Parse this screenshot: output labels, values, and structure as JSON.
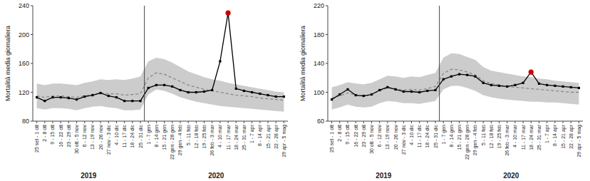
{
  "chart_data": [
    {
      "type": "line",
      "ylabel": "Mortalità media giornaliera",
      "categories": [
        "25 set - 1 ott",
        "2 - 8 ott",
        "9 - 15 ott",
        "16 - 22 ott",
        "23 - 29 ott",
        "30 ott - 5 nov",
        "6 - 12 nov",
        "13 - 19 nov",
        "20 - 26 nov",
        "27 nov - 3 dic",
        "4 - 10 dic",
        "11 - 17 dic",
        "18 - 24 dic",
        "25 - 31 dic",
        "1 - 7 gen",
        "8 - 14 gen",
        "15 - 21 gen",
        "22 gen - 28 gen",
        "29 gen - 4 feb",
        "5 - 11 feb",
        "12 - 18 feb",
        "19 - 25 feb",
        "26 feb - 3 mar",
        "4 - 10 mar",
        "11 - 17 mar",
        "18 - 24 mar",
        "25 - 31 mar",
        "1 - 7 apr",
        "8 - 14 apr",
        "15 - 21 apr",
        "22 - 28 apr",
        "29 apr - 5 mag"
      ],
      "ylim": [
        80,
        240
      ],
      "yticks": [
        80,
        120,
        160,
        200,
        240
      ],
      "grid": false,
      "groups": [
        {
          "label": "2019",
          "count": 14
        },
        {
          "label": "2020",
          "count": 18
        }
      ],
      "series": [
        {
          "type": "area",
          "color": "#cccccc",
          "lower": [
            98,
            96,
            98,
            98,
            97,
            95,
            98,
            100,
            101,
            99,
            98,
            95,
            95,
            96,
            117,
            124,
            122,
            118,
            113,
            110,
            107,
            105,
            103,
            101,
            100,
            99,
            98,
            97,
            96,
            95,
            94,
            93
          ],
          "upper": [
            132,
            130,
            132,
            132,
            131,
            130,
            133,
            135,
            138,
            137,
            138,
            137,
            139,
            142,
            163,
            168,
            166,
            161,
            155,
            149,
            145,
            141,
            138,
            136,
            133,
            131,
            129,
            127,
            125,
            123,
            121,
            120
          ]
        },
        {
          "type": "line",
          "color": "#888888",
          "line_style": "dashed",
          "values": [
            115,
            113,
            115,
            115,
            114,
            113,
            115,
            117,
            119,
            118,
            118,
            116,
            117,
            118,
            140,
            147,
            145,
            140,
            135,
            130,
            127,
            124,
            122,
            120,
            118,
            116,
            115,
            114,
            112,
            111,
            110,
            109
          ]
        },
        {
          "type": "line",
          "color": "#000000",
          "line_style": "solid",
          "marker": "square",
          "values": [
            113,
            108,
            113,
            113,
            112,
            110,
            114,
            116,
            119,
            115,
            113,
            108,
            108,
            108,
            126,
            130,
            130,
            128,
            123,
            120,
            120,
            121,
            123,
            163,
            230,
            125,
            122,
            120,
            118,
            116,
            114,
            114
          ]
        },
        {
          "type": "scatter",
          "color": "#cc0000",
          "marker": "circle",
          "values": [
            null,
            null,
            null,
            null,
            null,
            null,
            null,
            null,
            null,
            null,
            null,
            null,
            null,
            null,
            null,
            null,
            null,
            null,
            null,
            null,
            null,
            null,
            null,
            null,
            230,
            null,
            null,
            null,
            null,
            null,
            null,
            null
          ]
        }
      ]
    },
    {
      "type": "line",
      "ylabel": "Mortalità media giornaliera",
      "categories": [
        "25 set - 1 ott",
        "2 - 8 ott",
        "9 - 15 ott",
        "16 - 22 ott",
        "23 - 29 ott",
        "30 ott - 5 nov",
        "6 - 12 nov",
        "13 - 19 nov",
        "20 - 26 nov",
        "27 nov - 3 dic",
        "4 - 10 dic",
        "11 - 17 dic",
        "18 - 24 dic",
        "25 - 31 dic",
        "1 - 7 gen",
        "8 - 14 gen",
        "15 - 21 gen",
        "22 gen - 28 gen",
        "29 gen - 4 feb",
        "5 - 11 feb",
        "12 - 18 feb",
        "19 - 25 feb",
        "26 feb - 3 mar",
        "4 - 10 mar",
        "11 - 17 mar",
        "18 - 24 mar",
        "25 - 31 mar",
        "1 - 7 apr",
        "8 - 14 apr",
        "15 - 21 apr",
        "22 - 28 apr",
        "29 apr - 5 mag"
      ],
      "ylim": [
        60,
        220
      ],
      "yticks": [
        60,
        100,
        140,
        180,
        220
      ],
      "grid": false,
      "groups": [
        {
          "label": "2019",
          "count": 14
        },
        {
          "label": "2020",
          "count": 18
        }
      ],
      "series": [
        {
          "type": "area",
          "color": "#cccccc",
          "lower": [
            76,
            79,
            83,
            80,
            79,
            80,
            85,
            88,
            87,
            85,
            85,
            84,
            86,
            88,
            104,
            109,
            109,
            106,
            102,
            96,
            93,
            91,
            90,
            89,
            88,
            87,
            87,
            86,
            86,
            85,
            84,
            83
          ],
          "upper": [
            107,
            110,
            114,
            112,
            111,
            113,
            118,
            123,
            122,
            120,
            122,
            121,
            124,
            127,
            148,
            154,
            153,
            149,
            145,
            135,
            130,
            128,
            126,
            124,
            122,
            121,
            119,
            118,
            116,
            115,
            114,
            113
          ]
        },
        {
          "type": "line",
          "color": "#888888",
          "line_style": "dashed",
          "values": [
            92,
            95,
            99,
            96,
            95,
            97,
            102,
            106,
            105,
            103,
            104,
            103,
            105,
            108,
            126,
            132,
            131,
            128,
            124,
            116,
            112,
            110,
            108,
            107,
            106,
            105,
            104,
            103,
            102,
            101,
            100,
            100
          ]
        },
        {
          "type": "line",
          "color": "#000000",
          "line_style": "solid",
          "marker": "square",
          "values": [
            90,
            97,
            104,
            96,
            95,
            97,
            103,
            107,
            104,
            101,
            101,
            100,
            102,
            103,
            118,
            122,
            125,
            124,
            122,
            113,
            110,
            109,
            108,
            110,
            113,
            128,
            112,
            110,
            109,
            108,
            107,
            106
          ]
        },
        {
          "type": "scatter",
          "color": "#cc0000",
          "marker": "circle",
          "values": [
            null,
            null,
            null,
            null,
            null,
            null,
            null,
            null,
            null,
            null,
            null,
            null,
            null,
            null,
            null,
            null,
            null,
            null,
            null,
            null,
            null,
            null,
            null,
            null,
            null,
            128,
            null,
            null,
            null,
            null,
            null,
            null
          ]
        }
      ]
    }
  ]
}
